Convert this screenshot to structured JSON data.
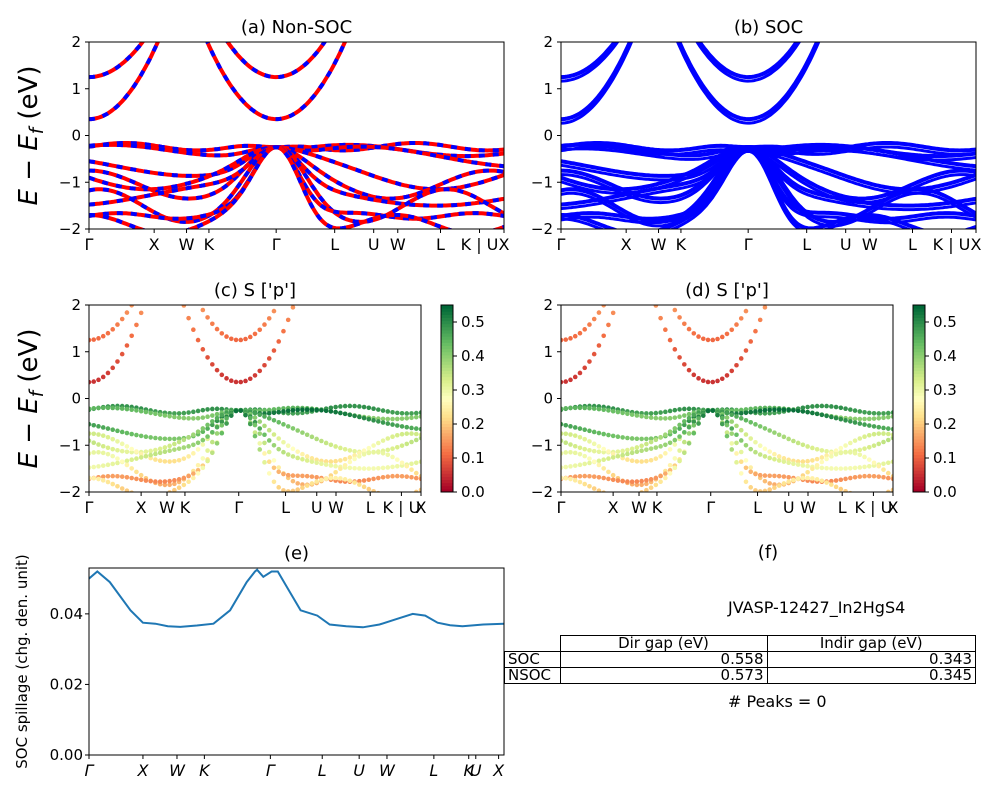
{
  "chart_data": [
    {
      "id": "a",
      "type": "line",
      "title": "(a) Non-SOC",
      "ylabel": "E − E_f (eV)",
      "ylim": [
        -2,
        2
      ],
      "yticks": [
        "−2",
        "−1",
        "0",
        "1",
        "2"
      ],
      "kpath_labels": [
        "Γ",
        "X",
        "W",
        "K",
        "Γ",
        "L",
        "U",
        "W",
        "L",
        "K | U",
        "X"
      ],
      "series": [
        {
          "color": "#ff0000",
          "style": "solid"
        },
        {
          "color": "#0000ff",
          "style": "dashed"
        }
      ]
    },
    {
      "id": "b",
      "type": "line",
      "title": "(b) SOC",
      "ylim": [
        -2,
        2
      ],
      "yticks": [
        "−2",
        "−1",
        "0",
        "1",
        "2"
      ],
      "kpath_labels": [
        "Γ",
        "X",
        "W",
        "K",
        "Γ",
        "L",
        "U",
        "W",
        "L",
        "K | U",
        "X"
      ],
      "series": [
        {
          "color": "#0000ff",
          "style": "solid"
        }
      ]
    },
    {
      "id": "c",
      "type": "scatter",
      "title": "(c)  S ['p']",
      "ylabel": "E − E_f (eV)",
      "ylim": [
        -2,
        2
      ],
      "yticks": [
        "−2",
        "−1",
        "0",
        "1",
        "2"
      ],
      "kpath_labels": [
        "Γ",
        "X",
        "W",
        "K",
        "Γ",
        "L",
        "U",
        "W",
        "L",
        "K | U",
        "X"
      ],
      "colorbar": {
        "colormap": "RdYlGn",
        "range": [
          0.0,
          0.55
        ],
        "ticks": [
          "0.0",
          "0.1",
          "0.2",
          "0.3",
          "0.4",
          "0.5"
        ]
      }
    },
    {
      "id": "d",
      "type": "scatter",
      "title": "(d) S ['p']",
      "ylim": [
        -2,
        2
      ],
      "yticks": [
        "−2",
        "−1",
        "0",
        "1",
        "2"
      ],
      "kpath_labels": [
        "Γ",
        "X",
        "W",
        "K",
        "Γ",
        "L",
        "U",
        "W",
        "L",
        "K | U",
        "X"
      ],
      "colorbar": {
        "colormap": "RdYlGn",
        "range": [
          0.0,
          0.55
        ],
        "ticks": [
          "0.0",
          "0.1",
          "0.2",
          "0.3",
          "0.4",
          "0.5"
        ]
      }
    },
    {
      "id": "e",
      "type": "line",
      "title": "(e)",
      "ylabel": "SOC spillage (chg. den. unit)",
      "ylim": [
        0.0,
        0.053
      ],
      "yticks": [
        "0.00",
        "0.02",
        "0.04"
      ],
      "kpath_labels": [
        "Γ",
        "X",
        "W",
        "K",
        "Γ",
        "L",
        "U",
        "W",
        "L",
        "K",
        "U",
        "X"
      ],
      "series": [
        {
          "color": "#1f77b4",
          "x": [
            0,
            0.02,
            0.05,
            0.1,
            0.13,
            0.16,
            0.19,
            0.22,
            0.26,
            0.3,
            0.34,
            0.38,
            0.4,
            0.405,
            0.42,
            0.44,
            0.455,
            0.48,
            0.51,
            0.55,
            0.58,
            0.62,
            0.66,
            0.7,
            0.74,
            0.78,
            0.81,
            0.84,
            0.87,
            0.9,
            0.95,
            1.0
          ],
          "y": [
            0.05,
            0.052,
            0.049,
            0.041,
            0.0375,
            0.0372,
            0.0365,
            0.0363,
            0.0367,
            0.0372,
            0.041,
            0.049,
            0.052,
            0.0525,
            0.0505,
            0.052,
            0.052,
            0.047,
            0.041,
            0.0395,
            0.037,
            0.0365,
            0.0362,
            0.037,
            0.0385,
            0.04,
            0.0395,
            0.0375,
            0.0368,
            0.0365,
            0.037,
            0.0372
          ]
        }
      ]
    }
  ],
  "panel_f": {
    "title": "(f)",
    "name": "JVASP-12427_In2HgS4",
    "table": {
      "headers": [
        "Dir gap (eV)",
        "Indir gap (eV)"
      ],
      "rows": [
        {
          "label": "SOC",
          "dir": "0.558",
          "indir": "0.343"
        },
        {
          "label": "NSOC",
          "dir": "0.573",
          "indir": "0.345"
        }
      ]
    },
    "peaks": "# Peaks = 0"
  }
}
